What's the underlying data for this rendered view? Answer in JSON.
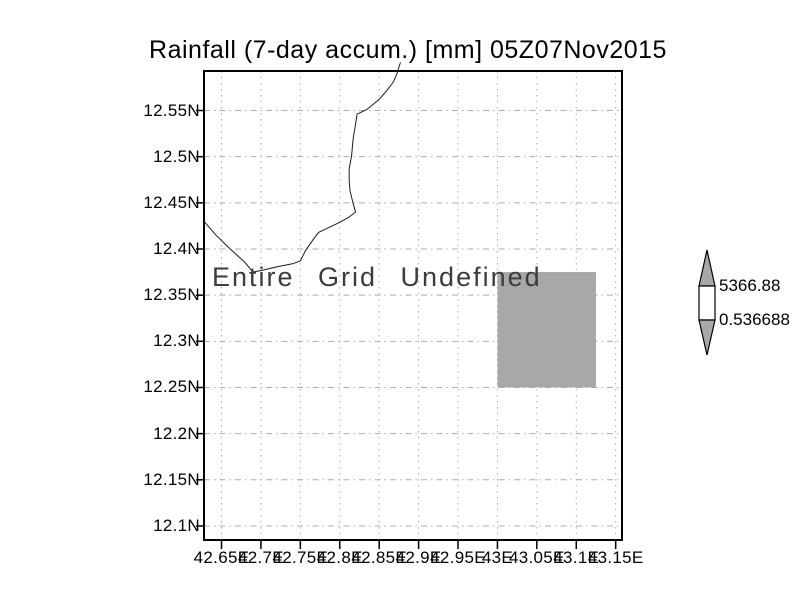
{
  "chart_data": {
    "type": "map",
    "title": "Rainfall (7-day accum.) [mm] 05Z07Nov2015",
    "annotation": "Entire Grid Undefined",
    "x_tick_labels": [
      "42.65E",
      "42.7E",
      "42.75E",
      "42.8E",
      "42.85E",
      "42.9E",
      "42.95E",
      "43E",
      "43.05E",
      "43.1E",
      "43.15E"
    ],
    "x_tick_values": [
      42.65,
      42.7,
      42.75,
      42.8,
      42.85,
      42.9,
      42.95,
      43.0,
      43.05,
      43.1,
      43.15
    ],
    "y_tick_labels": [
      "12.55N",
      "12.5N",
      "12.45N",
      "12.4N",
      "12.35N",
      "12.3N",
      "12.25N",
      "12.2N",
      "12.15N",
      "12.1N"
    ],
    "y_tick_values": [
      12.55,
      12.5,
      12.45,
      12.4,
      12.35,
      12.3,
      12.25,
      12.2,
      12.15,
      12.1
    ],
    "xlim": [
      42.6278,
      43.158
    ],
    "ylim": [
      12.0848,
      12.5928
    ],
    "grid": true,
    "grid_style": "dotted",
    "undefined_cell": {
      "lon_min": 43.0,
      "lon_max": 43.125,
      "lat_min": 12.25,
      "lat_max": 12.375
    },
    "coastline_lonlat": [
      [
        42.6278,
        12.43
      ],
      [
        42.643,
        12.415
      ],
      [
        42.661,
        12.4
      ],
      [
        42.679,
        12.386
      ],
      [
        42.69,
        12.375
      ],
      [
        42.702,
        12.377
      ],
      [
        42.722,
        12.381
      ],
      [
        42.74,
        12.384
      ],
      [
        42.75,
        12.387
      ],
      [
        42.757,
        12.399
      ],
      [
        42.766,
        12.41
      ],
      [
        42.773,
        12.418
      ],
      [
        42.783,
        12.422
      ],
      [
        42.798,
        12.428
      ],
      [
        42.811,
        12.434
      ],
      [
        42.82,
        12.44
      ],
      [
        42.817,
        12.449
      ],
      [
        42.813,
        12.463
      ],
      [
        42.812,
        12.474
      ],
      [
        42.812,
        12.487
      ],
      [
        42.815,
        12.501
      ],
      [
        42.817,
        12.52
      ],
      [
        42.82,
        12.535
      ],
      [
        42.822,
        12.546
      ],
      [
        42.834,
        12.551
      ],
      [
        42.85,
        12.562
      ],
      [
        42.86,
        12.572
      ],
      [
        42.868,
        12.581
      ],
      [
        42.873,
        12.591
      ],
      [
        42.875,
        12.597
      ],
      [
        42.877,
        12.602
      ]
    ],
    "colorbar": {
      "orientation": "vertical",
      "position": "right",
      "max_label": "5366.88",
      "min_label": "0.536688",
      "max": 5366.88,
      "min": 0.536688
    },
    "colors": {
      "frame": "#000000",
      "grid_gray": "#adadad",
      "cell_gray": "#a8a8a8",
      "arrow_gray": "#a8a8a8",
      "colorbar_body": "#ffffff",
      "coast": "#1c1c1c",
      "text": "#000000",
      "annotation_text": "#3c3c3c"
    }
  }
}
